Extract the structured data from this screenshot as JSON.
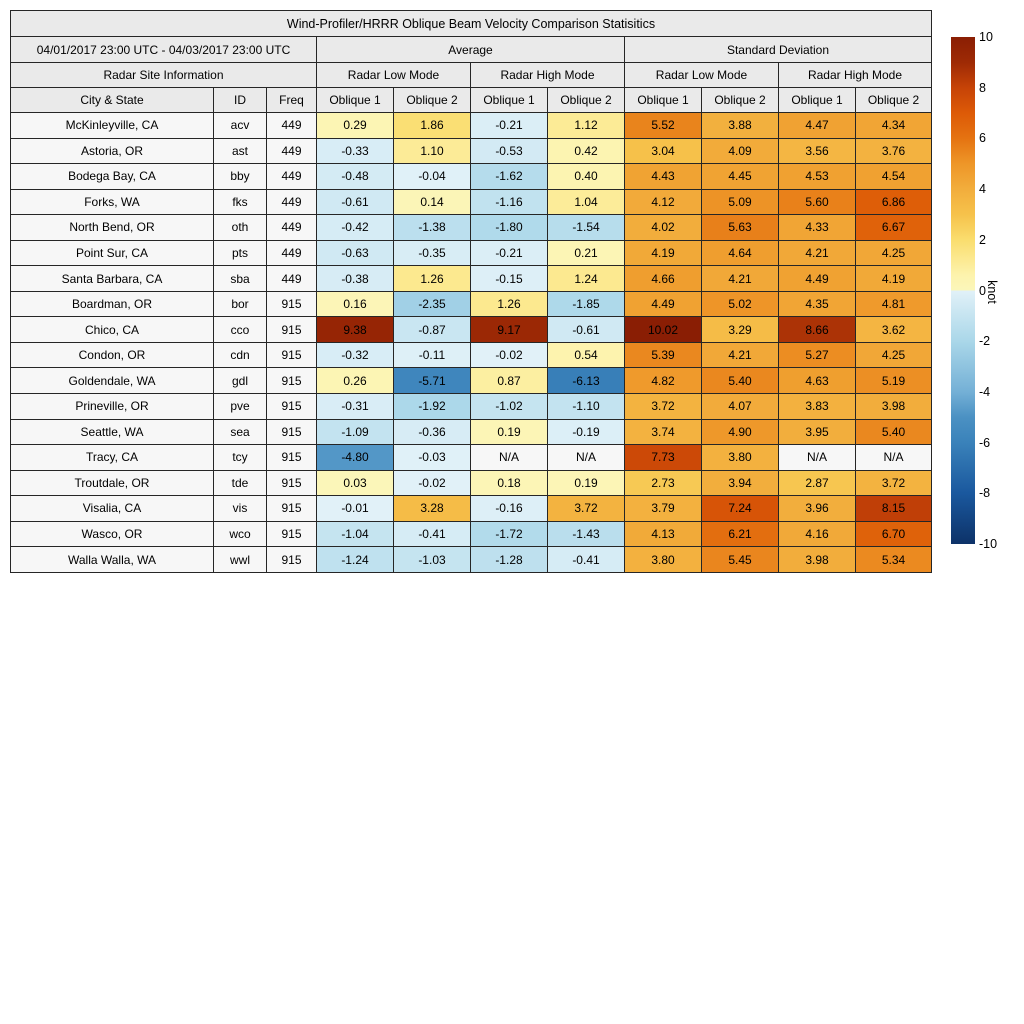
{
  "chart_data": {
    "type": "heatmap",
    "title": "Wind-Profiler/HRRR Oblique Beam Velocity Comparison Statisitics",
    "header": {
      "date_range": "04/01/2017 23:00 UTC - 04/03/2017 23:00 UTC",
      "group_average": "Average",
      "group_std": "Standard Deviation",
      "radar_site_info": "Radar Site Information",
      "mode_headers": [
        "Radar Low Mode",
        "Radar High Mode",
        "Radar Low Mode",
        "Radar High Mode"
      ],
      "col_headers": [
        "City & State",
        "ID",
        "Freq",
        "Oblique 1",
        "Oblique 2",
        "Oblique 1",
        "Oblique 2",
        "Oblique 1",
        "Oblique 2",
        "Oblique 1",
        "Oblique 2"
      ]
    },
    "rows": [
      {
        "city": "McKinleyville, CA",
        "id": "acv",
        "freq": "449",
        "values": [
          "0.29",
          "1.86",
          "-0.21",
          "1.12",
          "5.52",
          "3.88",
          "4.47",
          "4.34"
        ]
      },
      {
        "city": "Astoria, OR",
        "id": "ast",
        "freq": "449",
        "values": [
          "-0.33",
          "1.10",
          "-0.53",
          "0.42",
          "3.04",
          "4.09",
          "3.56",
          "3.76"
        ]
      },
      {
        "city": "Bodega Bay, CA",
        "id": "bby",
        "freq": "449",
        "values": [
          "-0.48",
          "-0.04",
          "-1.62",
          "0.40",
          "4.43",
          "4.45",
          "4.53",
          "4.54"
        ]
      },
      {
        "city": "Forks, WA",
        "id": "fks",
        "freq": "449",
        "values": [
          "-0.61",
          "0.14",
          "-1.16",
          "1.04",
          "4.12",
          "5.09",
          "5.60",
          "6.86"
        ]
      },
      {
        "city": "North Bend, OR",
        "id": "oth",
        "freq": "449",
        "values": [
          "-0.42",
          "-1.38",
          "-1.80",
          "-1.54",
          "4.02",
          "5.63",
          "4.33",
          "6.67"
        ]
      },
      {
        "city": "Point Sur, CA",
        "id": "pts",
        "freq": "449",
        "values": [
          "-0.63",
          "-0.35",
          "-0.21",
          "0.21",
          "4.19",
          "4.64",
          "4.21",
          "4.25"
        ]
      },
      {
        "city": "Santa Barbara, CA",
        "id": "sba",
        "freq": "449",
        "values": [
          "-0.38",
          "1.26",
          "-0.15",
          "1.24",
          "4.66",
          "4.21",
          "4.49",
          "4.19"
        ]
      },
      {
        "city": "Boardman, OR",
        "id": "bor",
        "freq": "915",
        "values": [
          "0.16",
          "-2.35",
          "1.26",
          "-1.85",
          "4.49",
          "5.02",
          "4.35",
          "4.81"
        ]
      },
      {
        "city": "Chico, CA",
        "id": "cco",
        "freq": "915",
        "values": [
          "9.38",
          "-0.87",
          "9.17",
          "-0.61",
          "10.02",
          "3.29",
          "8.66",
          "3.62"
        ]
      },
      {
        "city": "Condon, OR",
        "id": "cdn",
        "freq": "915",
        "values": [
          "-0.32",
          "-0.11",
          "-0.02",
          "0.54",
          "5.39",
          "4.21",
          "5.27",
          "4.25"
        ]
      },
      {
        "city": "Goldendale, WA",
        "id": "gdl",
        "freq": "915",
        "values": [
          "0.26",
          "-5.71",
          "0.87",
          "-6.13",
          "4.82",
          "5.40",
          "4.63",
          "5.19"
        ]
      },
      {
        "city": "Prineville, OR",
        "id": "pve",
        "freq": "915",
        "values": [
          "-0.31",
          "-1.92",
          "-1.02",
          "-1.10",
          "3.72",
          "4.07",
          "3.83",
          "3.98"
        ]
      },
      {
        "city": "Seattle, WA",
        "id": "sea",
        "freq": "915",
        "values": [
          "-1.09",
          "-0.36",
          "0.19",
          "-0.19",
          "3.74",
          "4.90",
          "3.95",
          "5.40"
        ]
      },
      {
        "city": "Tracy, CA",
        "id": "tcy",
        "freq": "915",
        "values": [
          "-4.80",
          "-0.03",
          "N/A",
          "N/A",
          "7.73",
          "3.80",
          "N/A",
          "N/A"
        ]
      },
      {
        "city": "Troutdale, OR",
        "id": "tde",
        "freq": "915",
        "values": [
          "0.03",
          "-0.02",
          "0.18",
          "0.19",
          "2.73",
          "3.94",
          "2.87",
          "3.72"
        ]
      },
      {
        "city": "Visalia, CA",
        "id": "vis",
        "freq": "915",
        "values": [
          "-0.01",
          "3.28",
          "-0.16",
          "3.72",
          "3.79",
          "7.24",
          "3.96",
          "8.15"
        ]
      },
      {
        "city": "Wasco, OR",
        "id": "wco",
        "freq": "915",
        "values": [
          "-1.04",
          "-0.41",
          "-1.72",
          "-1.43",
          "4.13",
          "6.21",
          "4.16",
          "6.70"
        ]
      },
      {
        "city": "Walla Walla, WA",
        "id": "wwl",
        "freq": "915",
        "values": [
          "-1.24",
          "-1.03",
          "-1.28",
          "-0.41",
          "3.80",
          "5.45",
          "3.98",
          "5.34"
        ]
      }
    ],
    "colorbar": {
      "label": "knot",
      "min": -10,
      "max": 10,
      "ticks": [
        "10",
        "8",
        "6",
        "4",
        "2",
        "0",
        "-2",
        "-4",
        "-6",
        "-8",
        "-10"
      ]
    }
  },
  "colors": {
    "header_bg": "#eaeaea",
    "site_bg": "#f7f7f7",
    "na_bg": "#f7f7f7",
    "border": "#262626",
    "colormap_stops": [
      {
        "v": -10,
        "c": "#0d3268"
      },
      {
        "v": -8,
        "c": "#1a589e"
      },
      {
        "v": -6,
        "c": "#3a82ba"
      },
      {
        "v": -5,
        "c": "#4b91c3"
      },
      {
        "v": -4,
        "c": "#74b0d6"
      },
      {
        "v": -2,
        "c": "#aad7e9"
      },
      {
        "v": -0.01,
        "c": "#e1f1f8"
      },
      {
        "v": 0,
        "c": "#fbf6ba"
      },
      {
        "v": 0.6,
        "c": "#fdf3ad"
      },
      {
        "v": 2,
        "c": "#fadd6e"
      },
      {
        "v": 3,
        "c": "#f6c24b"
      },
      {
        "v": 4,
        "c": "#f2ad3c"
      },
      {
        "v": 5,
        "c": "#ee9628"
      },
      {
        "v": 6,
        "c": "#e57311"
      },
      {
        "v": 7,
        "c": "#dd5a07"
      },
      {
        "v": 8,
        "c": "#c64307"
      },
      {
        "v": 9,
        "c": "#9e2a05"
      },
      {
        "v": 10,
        "c": "#8a1e04"
      }
    ]
  }
}
